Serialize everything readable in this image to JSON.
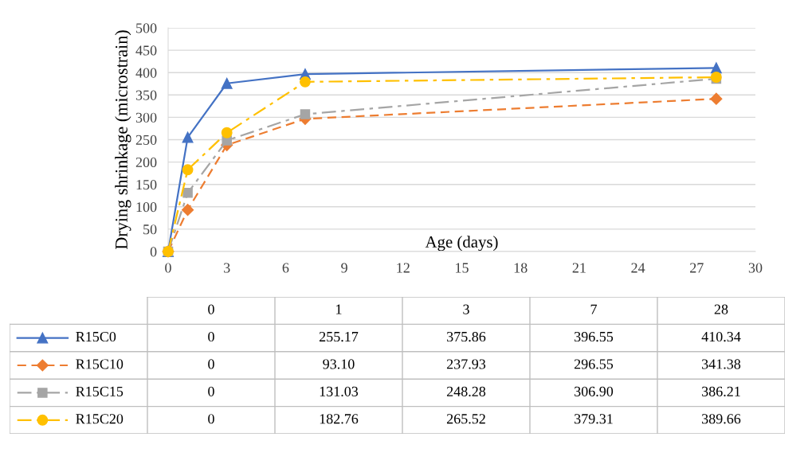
{
  "chart_data": [
    {
      "type": "line",
      "xlabel": "Age (days)",
      "ylabel": "Drying shrinkage (microstrain)",
      "x": [
        0,
        1,
        3,
        7,
        28
      ],
      "xlim": [
        0,
        30
      ],
      "xticks": [
        0,
        3,
        6,
        9,
        12,
        15,
        18,
        21,
        24,
        27,
        30
      ],
      "ylim": [
        0,
        500
      ],
      "yticks": [
        0,
        50,
        100,
        150,
        200,
        250,
        300,
        350,
        400,
        450,
        500
      ],
      "grid": "y",
      "legend": "bottom",
      "series": [
        {
          "name": "R15C0",
          "color": "#4472c4",
          "marker": "triangle",
          "line_style": "solid",
          "values": [
            0,
            255.17,
            375.86,
            396.55,
            410.34
          ]
        },
        {
          "name": "R15C10",
          "color": "#ed7d31",
          "marker": "diamond",
          "line_style": "dashed",
          "values": [
            0,
            93.1,
            237.93,
            296.55,
            341.38
          ]
        },
        {
          "name": "R15C15",
          "color": "#a5a5a5",
          "marker": "square",
          "line_style": "dashdot",
          "values": [
            0,
            131.03,
            248.28,
            306.9,
            386.21
          ]
        },
        {
          "name": "R15C20",
          "color": "#ffc000",
          "marker": "circle",
          "line_style": "dashdot",
          "values": [
            0,
            182.76,
            265.52,
            379.31,
            389.66
          ]
        }
      ]
    },
    {
      "type": "other",
      "categories": [
        "0",
        "1",
        "3",
        "7",
        "28"
      ],
      "cell_labels": [
        [
          "0",
          "255.17",
          "375.86",
          "396.55",
          "410.34"
        ],
        [
          "0",
          "93.10",
          "237.93",
          "296.55",
          "341.38"
        ],
        [
          "0",
          "131.03",
          "248.28",
          "306.90",
          "386.21"
        ],
        [
          "0",
          "182.76",
          "265.52",
          "379.31",
          "389.66"
        ]
      ]
    }
  ]
}
